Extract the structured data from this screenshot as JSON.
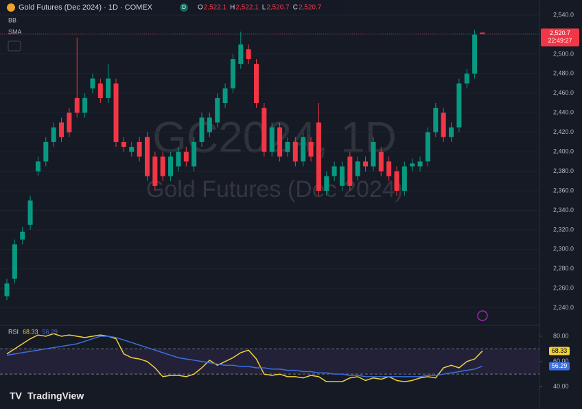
{
  "header": {
    "title": "Gold Futures (Dec 2024) · 1D · COMEX",
    "badge": "D",
    "ohlc_legend": [
      [
        "O",
        "2,522.1"
      ],
      [
        "H",
        "2,522.1"
      ],
      [
        "L",
        "2,520.7"
      ],
      [
        "C",
        "2,520.7"
      ]
    ]
  },
  "indicators": [
    "BB",
    "SMA"
  ],
  "watermark": {
    "symbol": "GC2024, 1D",
    "description": "Gold Futures (Dec 2024)"
  },
  "branding": "TradingView",
  "chart_data": [
    {
      "type": "candlestick",
      "up_color": "#089981",
      "down_color": "#f23645",
      "open": [
        2252,
        2270,
        2310,
        2325,
        2380,
        2390,
        2410,
        2430,
        2440,
        2455,
        2440,
        2465,
        2470,
        2455,
        2470,
        2410,
        2400,
        2410,
        2415,
        2395,
        2395,
        2375,
        2385,
        2400,
        2385,
        2410,
        2420,
        2430,
        2450,
        2465,
        2490,
        2505,
        2490,
        2445,
        2400,
        2425,
        2400,
        2410,
        2390,
        2410,
        2430,
        2360,
        2375,
        2365,
        2395,
        2375,
        2390,
        2385,
        2400,
        2390,
        2380,
        2360,
        2385,
        2385,
        2390,
        2420,
        2440,
        2415,
        2425,
        2470,
        2480,
        2522.1
      ],
      "high": [
        2270,
        2310,
        2323,
        2355,
        2395,
        2415,
        2430,
        2435,
        2445,
        2517,
        2460,
        2480,
        2475,
        2490,
        2475,
        2415,
        2410,
        2415,
        2420,
        2400,
        2400,
        2400,
        2405,
        2405,
        2415,
        2440,
        2440,
        2460,
        2470,
        2500,
        2523,
        2510,
        2495,
        2450,
        2430,
        2430,
        2415,
        2415,
        2420,
        2415,
        2450,
        2380,
        2390,
        2390,
        2400,
        2395,
        2395,
        2415,
        2405,
        2395,
        2385,
        2390,
        2393,
        2395,
        2425,
        2450,
        2445,
        2430,
        2475,
        2485,
        2525,
        2522.1
      ],
      "low": [
        2248,
        2265,
        2305,
        2320,
        2375,
        2385,
        2405,
        2410,
        2415,
        2435,
        2435,
        2460,
        2450,
        2450,
        2405,
        2400,
        2395,
        2390,
        2370,
        2360,
        2370,
        2370,
        2380,
        2385,
        2380,
        2405,
        2415,
        2425,
        2445,
        2460,
        2485,
        2490,
        2445,
        2395,
        2395,
        2390,
        2395,
        2385,
        2385,
        2390,
        2355,
        2355,
        2370,
        2360,
        2360,
        2370,
        2380,
        2380,
        2375,
        2370,
        2355,
        2355,
        2380,
        2380,
        2385,
        2415,
        2410,
        2410,
        2420,
        2465,
        2475,
        2520.7
      ],
      "close": [
        2265,
        2305,
        2318,
        2350,
        2390,
        2410,
        2425,
        2415,
        2420,
        2440,
        2455,
        2475,
        2455,
        2475,
        2410,
        2405,
        2405,
        2395,
        2375,
        2365,
        2375,
        2395,
        2400,
        2390,
        2410,
        2435,
        2435,
        2455,
        2465,
        2495,
        2510,
        2495,
        2450,
        2400,
        2425,
        2395,
        2410,
        2390,
        2415,
        2395,
        2360,
        2375,
        2385,
        2385,
        2365,
        2390,
        2385,
        2410,
        2380,
        2375,
        2360,
        2385,
        2388,
        2390,
        2420,
        2445,
        2415,
        2425,
        2470,
        2480,
        2520,
        2520.7
      ],
      "ylim": [
        2225,
        2555.5
      ],
      "yticks": [
        {
          "value": 2240,
          "label": "2,240.0"
        },
        {
          "value": 2260,
          "label": "2,260.0"
        },
        {
          "value": 2280,
          "label": "2,280.0"
        },
        {
          "value": 2300,
          "label": "2,300.0"
        },
        {
          "value": 2320,
          "label": "2,320.0"
        },
        {
          "value": 2340,
          "label": "2,340.0"
        },
        {
          "value": 2360,
          "label": "2,360.0"
        },
        {
          "value": 2380,
          "label": "2,380.0"
        },
        {
          "value": 2400,
          "label": "2,400.0"
        },
        {
          "value": 2420,
          "label": "2,420.0"
        },
        {
          "value": 2440,
          "label": "2,440.0"
        },
        {
          "value": 2460,
          "label": "2,460.0"
        },
        {
          "value": 2480,
          "label": "2,480.0"
        },
        {
          "value": 2500,
          "label": "2,500.0"
        },
        {
          "value": 2520,
          "label": "2,520.0"
        },
        {
          "value": 2540,
          "label": "2,540.0"
        }
      ],
      "grid": true,
      "last_price": {
        "value": 2520.7,
        "label": "2,520.7"
      },
      "countdown": "22:49:27"
    },
    {
      "type": "line",
      "title": "RSI",
      "series": [
        {
          "color": "#f2d13a",
          "value_label": "68.33",
          "values": [
            66,
            70,
            74,
            78,
            81,
            80,
            82,
            80,
            81,
            80,
            79,
            80,
            81,
            80,
            78,
            66,
            63,
            62,
            60,
            55,
            48,
            49,
            49,
            48,
            50,
            55,
            61,
            57,
            60,
            63,
            67,
            69,
            62,
            50,
            49,
            50,
            48,
            48,
            47,
            49,
            48,
            44,
            44,
            44,
            47,
            48,
            45,
            47,
            46,
            48,
            45,
            44,
            45,
            47,
            48,
            47,
            55,
            57,
            55,
            60,
            62,
            68.33
          ]
        },
        {
          "color": "#3d6fe0",
          "value_label": "56.29",
          "values": [
            65,
            66,
            67,
            68,
            69,
            70,
            71,
            72,
            73,
            74,
            76,
            78,
            80,
            80,
            79,
            77,
            75,
            73,
            71,
            69,
            67,
            65,
            63,
            62,
            61,
            60,
            59,
            58,
            57,
            57,
            56,
            56,
            55,
            55,
            54,
            54,
            53,
            53,
            52,
            52,
            51,
            51,
            50,
            50,
            49,
            49,
            48,
            48,
            48,
            48,
            48,
            48,
            48,
            48,
            49,
            49,
            50,
            51,
            52,
            53,
            54,
            56.29
          ]
        }
      ],
      "ylim": [
        30,
        86.5
      ],
      "yticks": [
        {
          "value": 80,
          "label": "80.00"
        },
        {
          "value": 60,
          "label": "60.00"
        },
        {
          "value": 40,
          "label": "40.00"
        }
      ],
      "band": [
        50,
        70
      ]
    }
  ]
}
